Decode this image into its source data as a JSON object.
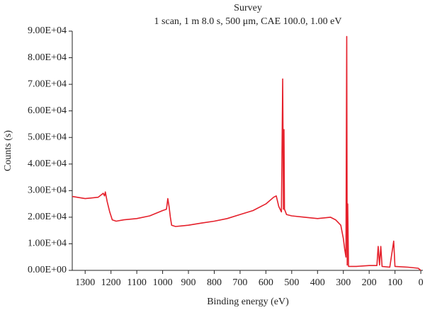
{
  "chart_data": {
    "type": "line",
    "title": "Survey",
    "subtitle": "1 scan, 1 m 8.0 s, 500 μm, CAE 100.0, 1.00 eV",
    "x_label": "Binding energy (eV)",
    "y_label": "Counts (s)",
    "color": "#e5202b",
    "x": [
      1350,
      1300,
      1250,
      1230,
      1225,
      1222,
      1215,
      1205,
      1195,
      1180,
      1150,
      1100,
      1050,
      1000,
      985,
      980,
      975,
      970,
      965,
      950,
      900,
      850,
      800,
      750,
      700,
      650,
      600,
      570,
      560,
      550,
      540,
      535,
      532,
      530,
      528,
      520,
      500,
      450,
      400,
      350,
      330,
      310,
      300,
      295,
      290,
      287,
      285,
      283,
      280,
      250,
      200,
      170,
      165,
      160,
      155,
      150,
      120,
      105,
      100,
      50,
      10,
      0
    ],
    "values": [
      27800,
      27000,
      27500,
      29000,
      28000,
      29500,
      26000,
      22000,
      19000,
      18500,
      19000,
      19500,
      20500,
      22500,
      23000,
      27000,
      24000,
      20000,
      17000,
      16500,
      17000,
      17800,
      18500,
      19500,
      21000,
      22500,
      25000,
      27500,
      28000,
      24000,
      22000,
      72000,
      23000,
      53000,
      23000,
      21000,
      20500,
      20000,
      19500,
      20000,
      19000,
      17000,
      12000,
      8000,
      5000,
      88000,
      2000,
      25000,
      1500,
      1500,
      1800,
      1800,
      9000,
      2000,
      9000,
      1500,
      1200,
      11000,
      1500,
      1200,
      800,
      0
    ],
    "xlim": [
      1350,
      -8
    ],
    "xticks": [
      1300,
      1200,
      1100,
      1000,
      900,
      800,
      700,
      600,
      500,
      400,
      300,
      200,
      100,
      0
    ],
    "ylim": [
      0,
      90000
    ],
    "yticks": [
      {
        "value": 0,
        "label": "0.00E+00"
      },
      {
        "value": 10000,
        "label": "1.00E+04"
      },
      {
        "value": 20000,
        "label": "2.00E+04"
      },
      {
        "value": 30000,
        "label": "3.00E+04"
      },
      {
        "value": 40000,
        "label": "4.00E+04"
      },
      {
        "value": 50000,
        "label": "5.00E+04"
      },
      {
        "value": 60000,
        "label": "6.00E+04"
      },
      {
        "value": 70000,
        "label": "7.00E+04"
      },
      {
        "value": 80000,
        "label": "8.00E+04"
      },
      {
        "value": 90000,
        "label": "9.00E+04"
      }
    ]
  }
}
